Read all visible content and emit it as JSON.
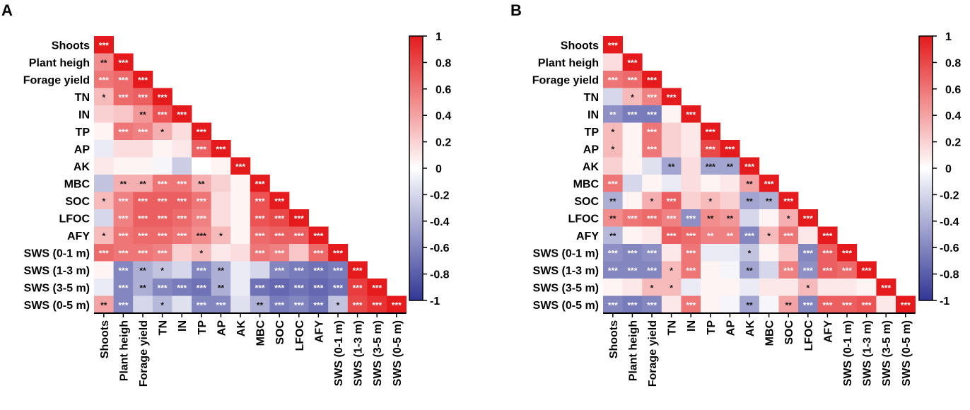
{
  "figure": {
    "panel_labels": [
      "A",
      "B"
    ]
  },
  "colors": {
    "positive": "#e41a1c",
    "neutral": "#ffffff",
    "negative": "#313695"
  },
  "chart_data": [
    {
      "type": "heatmap",
      "panel": "A",
      "title": "",
      "layout": "lower-triangle",
      "row_labels": [
        "Shoots",
        "Plant heigh",
        "Forage yield",
        "TN",
        "IN",
        "TP",
        "AP",
        "AK",
        "MBC",
        "SOC",
        "LFOC",
        "AFY",
        "SWS (0-1 m)",
        "SWS (1-3 m)",
        "SWS (3-5 m)",
        "SWS (0-5 m)"
      ],
      "column_labels": [
        "Shoots",
        "Plant heigh",
        "Forage yield",
        "TN",
        "IN",
        "TP",
        "AP",
        "AK",
        "MBC",
        "SOC",
        "LFOC",
        "AFY",
        "SWS (0-1 m)",
        "SWS (1-3 m)",
        "SWS (3-5 m)",
        "SWS (0-5 m)"
      ],
      "colorbar": {
        "min": -1,
        "max": 1,
        "ticks": [
          "1",
          "0.8",
          "0.6",
          "0.4",
          "0.2",
          "0",
          "-0.2",
          "-0.4",
          "-0.6",
          "-0.8",
          "-1"
        ]
      },
      "values": [
        [
          1
        ],
        [
          0.5,
          1
        ],
        [
          0.6,
          0.65,
          1
        ],
        [
          0.3,
          0.65,
          0.7,
          1
        ],
        [
          0.2,
          0.25,
          0.45,
          0.75,
          1
        ],
        [
          0.05,
          0.6,
          0.55,
          0.35,
          0.15,
          1
        ],
        [
          -0.1,
          0.15,
          0.15,
          0.05,
          0.1,
          0.7,
          1
        ],
        [
          0.1,
          0.05,
          0.05,
          -0.05,
          -0.25,
          0,
          0.05,
          1
        ],
        [
          -0.3,
          0.35,
          0.35,
          0.6,
          0.6,
          0.35,
          0.2,
          0.05,
          1
        ],
        [
          0.3,
          0.55,
          0.7,
          0.7,
          0.7,
          0.6,
          0.15,
          0.05,
          0.75,
          1
        ],
        [
          -0.2,
          0.55,
          0.7,
          0.7,
          0.65,
          0.55,
          0.15,
          0.05,
          0.75,
          0.8,
          1
        ],
        [
          0.3,
          0.6,
          0.65,
          0.65,
          0.6,
          0.5,
          0.3,
          0.05,
          0.65,
          0.7,
          0.7,
          1
        ],
        [
          0.65,
          0.6,
          0.6,
          0.55,
          0.2,
          0.3,
          0.1,
          0.15,
          0.6,
          0.55,
          0.25,
          0.65,
          1
        ],
        [
          0.05,
          -0.6,
          -0.4,
          -0.3,
          -0.2,
          -0.6,
          -0.4,
          -0.1,
          -0.2,
          -0.6,
          -0.65,
          -0.7,
          -0.65,
          1
        ],
        [
          -0.1,
          -0.6,
          -0.4,
          -0.6,
          -0.65,
          -0.7,
          -0.4,
          -0.1,
          -0.7,
          -0.75,
          -0.7,
          -0.75,
          -0.7,
          0.85,
          1
        ],
        [
          0.4,
          -0.6,
          -0.2,
          -0.35,
          -0.15,
          -0.6,
          -0.6,
          -0.15,
          -0.4,
          -0.65,
          -0.6,
          -0.7,
          -0.3,
          0.8,
          0.9,
          1
        ]
      ],
      "significance": [
        [
          "***"
        ],
        [
          "**",
          "***"
        ],
        [
          "***",
          "***",
          "***"
        ],
        [
          "*",
          "***",
          "***",
          "***"
        ],
        [
          "",
          "",
          "**",
          "***",
          "***"
        ],
        [
          "",
          "***",
          "***",
          "*",
          "",
          "***"
        ],
        [
          "",
          "",
          "",
          "",
          "",
          "***",
          "***"
        ],
        [
          "",
          "",
          "",
          "",
          "",
          "",
          "",
          "***"
        ],
        [
          "",
          "**",
          "**",
          "***",
          "***",
          "**",
          "",
          "",
          "***"
        ],
        [
          "*",
          "***",
          "***",
          "***",
          "***",
          "***",
          "",
          "",
          "***",
          "***"
        ],
        [
          "",
          "***",
          "***",
          "***",
          "***",
          "***",
          "",
          "",
          "***",
          "***",
          "***"
        ],
        [
          "*",
          "***",
          "***",
          "***",
          "***",
          "***",
          "*",
          "",
          "***",
          "***",
          "***",
          "***"
        ],
        [
          "***",
          "***",
          "***",
          "***",
          "",
          "*",
          "",
          "",
          "***",
          "***",
          "",
          "***",
          "***"
        ],
        [
          "",
          "***",
          "**",
          "*",
          "",
          "***",
          "**",
          "",
          "",
          "***",
          "***",
          "***",
          "***",
          "***"
        ],
        [
          "",
          "***",
          "**",
          "***",
          "***",
          "***",
          "**",
          "",
          "***",
          "***",
          "***",
          "***",
          "***",
          "***",
          "***"
        ],
        [
          "**",
          "***",
          "",
          "*",
          "",
          "***",
          "***",
          "",
          "**",
          "***",
          "***",
          "***",
          "*",
          "***",
          "***",
          "***"
        ]
      ]
    },
    {
      "type": "heatmap",
      "panel": "B",
      "title": "",
      "layout": "lower-triangle",
      "row_labels": [
        "Shoots",
        "Plant heigh",
        "Forage yield",
        "TN",
        "IN",
        "TP",
        "AP",
        "AK",
        "MBC",
        "SOC",
        "LFOC",
        "AFY",
        "SWS (0-1 m)",
        "SWS (1-3 m)",
        "SWS (3-5 m)",
        "SWS (0-5 m)"
      ],
      "column_labels": [
        "Shoots",
        "Plant heigh",
        "Forage yield",
        "TN",
        "IN",
        "TP",
        "AP",
        "AK",
        "MBC",
        "SOC",
        "LFOC",
        "AFY",
        "SWS (0-1 m)",
        "SWS (1-3 m)",
        "SWS (3-5 m)",
        "SWS (0-5 m)"
      ],
      "colorbar": {
        "min": -1,
        "max": 1,
        "ticks": [
          "1",
          "0.8",
          "0.6",
          "0.4",
          "0.2",
          "0",
          "-0.2",
          "-0.4",
          "-0.6",
          "-0.8",
          "-1"
        ]
      },
      "values": [
        [
          1
        ],
        [
          0.15,
          1
        ],
        [
          0.6,
          0.65,
          1
        ],
        [
          -0.2,
          0.3,
          0.55,
          1
        ],
        [
          -0.55,
          -0.65,
          -0.65,
          0.05,
          1
        ],
        [
          0.3,
          0.05,
          0.6,
          0.2,
          0.1,
          1
        ],
        [
          0.3,
          0.05,
          0.6,
          0.2,
          0.1,
          0.8,
          1
        ],
        [
          0.2,
          0.05,
          -0.15,
          -0.45,
          0.15,
          -0.45,
          -0.45,
          1
        ],
        [
          0.6,
          -0.2,
          0.05,
          -0.1,
          0.15,
          0.05,
          0.1,
          0.4,
          1
        ],
        [
          -0.4,
          0.05,
          0.35,
          0.7,
          0.2,
          0.3,
          0.2,
          -0.45,
          -0.4,
          1
        ],
        [
          0.5,
          0.6,
          0.65,
          0.55,
          -0.55,
          0.5,
          0.45,
          -0.2,
          0.05,
          0.35,
          1
        ],
        [
          -0.35,
          0.05,
          0.1,
          0.7,
          0.65,
          0.55,
          0.55,
          -0.6,
          0.3,
          0.6,
          0.1,
          1
        ],
        [
          -0.55,
          -0.6,
          -0.55,
          0.1,
          0.6,
          -0.1,
          -0.1,
          -0.3,
          0.05,
          0.25,
          -0.6,
          0.7,
          1
        ],
        [
          -0.6,
          -0.6,
          -0.6,
          0.3,
          0.6,
          0.05,
          -0.05,
          -0.45,
          -0.2,
          0.55,
          -0.55,
          0.7,
          0.65,
          1
        ],
        [
          0.05,
          0.1,
          0.3,
          0.3,
          -0.1,
          0.05,
          0.05,
          -0.1,
          0.1,
          0.1,
          0.3,
          0.1,
          0.1,
          0.05,
          1
        ],
        [
          -0.6,
          -0.65,
          -0.6,
          0.1,
          0.6,
          0.05,
          -0.05,
          -0.45,
          -0.05,
          0.4,
          -0.6,
          0.7,
          0.7,
          0.75,
          0.1,
          1
        ]
      ],
      "significance": [
        [
          "***"
        ],
        [
          "",
          "***"
        ],
        [
          "***",
          "***",
          "***"
        ],
        [
          "",
          "*",
          "***",
          "***"
        ],
        [
          "**",
          "***",
          "***",
          "",
          "***"
        ],
        [
          "*",
          "",
          "***",
          "",
          "",
          "***"
        ],
        [
          "*",
          "",
          "***",
          "",
          "",
          "***",
          "***"
        ],
        [
          "",
          "",
          "",
          "**",
          "",
          "***",
          "**",
          "***"
        ],
        [
          "***",
          "",
          "",
          "",
          "",
          "",
          "",
          "**",
          "***"
        ],
        [
          "**",
          "",
          "*",
          "***",
          "",
          "*",
          "",
          "**",
          "**",
          "***"
        ],
        [
          "**",
          "***",
          "***",
          "***",
          "***",
          "**",
          "**",
          "",
          "",
          "*",
          "***"
        ],
        [
          "**",
          "",
          "",
          "***",
          "***",
          "**",
          "**",
          "***",
          "*",
          "***",
          "",
          "***"
        ],
        [
          "***",
          "***",
          "***",
          "",
          "***",
          "",
          "",
          "*",
          "",
          "",
          "***",
          "***",
          "***"
        ],
        [
          "***",
          "***",
          "***",
          "*",
          "***",
          "",
          "",
          "**",
          "",
          "***",
          "***",
          "***",
          "***",
          "***"
        ],
        [
          "",
          "",
          "*",
          "*",
          "",
          "",
          "",
          "",
          "",
          "",
          "*",
          "",
          "",
          "",
          "***"
        ],
        [
          "***",
          "***",
          "***",
          "",
          "***",
          "",
          "",
          "**",
          "",
          "**",
          "***",
          "***",
          "***",
          "***",
          "",
          "***"
        ]
      ]
    }
  ]
}
